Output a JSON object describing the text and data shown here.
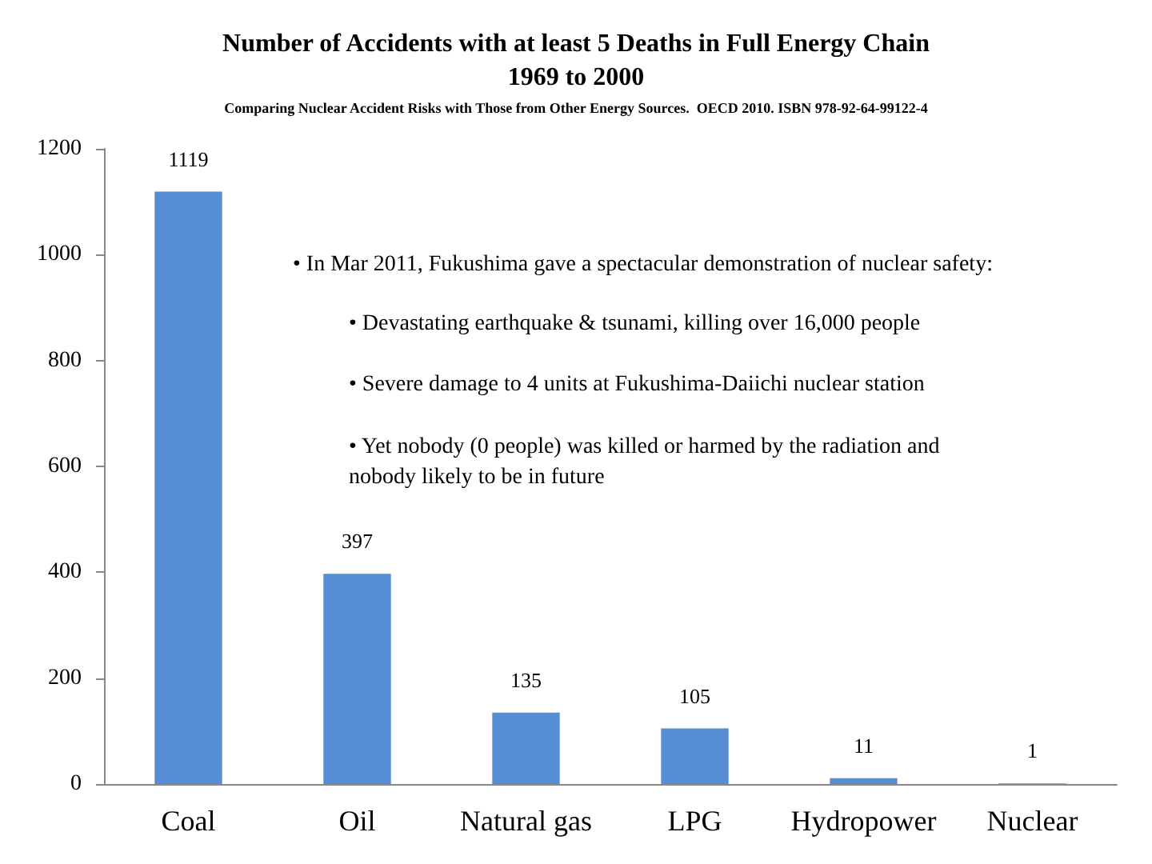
{
  "chart_data": {
    "type": "bar",
    "title": "Number of Accidents with at least 5 Deaths in Full Energy Chain\n1969 to 2000",
    "subtitle": "Comparing Nuclear Accident Risks with Those from Other Energy Sources.  OECD 2010. ISBN 978-92-64-99122-4",
    "categories": [
      "Coal",
      "Oil",
      "Natural gas",
      "LPG",
      "Hydropower",
      "Nuclear"
    ],
    "values": [
      1119,
      397,
      135,
      105,
      11,
      1
    ],
    "color": "#558ed5",
    "ylim": [
      0,
      1200
    ],
    "yticks": [
      0,
      200,
      400,
      600,
      800,
      1000,
      1200
    ],
    "grid": false,
    "data_labels": true,
    "annotations": [
      "• In Mar 2011, Fukushima gave a spectacular demonstration of nuclear safety:",
      "• Devastating earthquake & tsunami, killing over 16,000 people",
      "• Severe damage to 4 units at Fukushima-Daiichi nuclear station",
      "• Yet nobody (0 people) was killed or harmed by the radiation and\nnobody likely to be in future"
    ]
  }
}
